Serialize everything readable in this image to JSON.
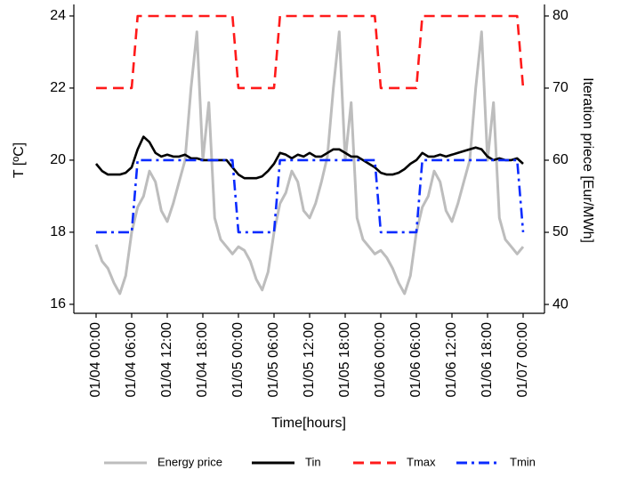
{
  "chart_data": {
    "type": "line",
    "x_label": "Time[hours]",
    "y_label": "T [ºC]",
    "y2_label": "Iteration priece [Eur/MWh]",
    "x": [
      0,
      1,
      2,
      3,
      4,
      5,
      6,
      7,
      8,
      9,
      10,
      11,
      12,
      13,
      14,
      15,
      16,
      17,
      18,
      19,
      20,
      21,
      22,
      23,
      24,
      25,
      26,
      27,
      28,
      29,
      30,
      31,
      32,
      33,
      34,
      35,
      36,
      37,
      38,
      39,
      40,
      41,
      42,
      43,
      44,
      45,
      46,
      47,
      48,
      49,
      50,
      51,
      52,
      53,
      54,
      55,
      56,
      57,
      58,
      59,
      60,
      61,
      62,
      63,
      64,
      65,
      66,
      67,
      68,
      69,
      70,
      71,
      72
    ],
    "xlim": [
      -3.75,
      75.6
    ],
    "xticks": [
      {
        "value": 0,
        "label": "01/04 00:00"
      },
      {
        "value": 6,
        "label": "01/04 06:00"
      },
      {
        "value": 12,
        "label": "01/04 12:00"
      },
      {
        "value": 18,
        "label": "01/04 18:00"
      },
      {
        "value": 24,
        "label": "01/05 00:00"
      },
      {
        "value": 30,
        "label": "01/05 06:00"
      },
      {
        "value": 36,
        "label": "01/05 12:00"
      },
      {
        "value": 42,
        "label": "01/05 18:00"
      },
      {
        "value": 48,
        "label": "01/06 00:00"
      },
      {
        "value": 54,
        "label": "01/06 06:00"
      },
      {
        "value": 60,
        "label": "01/06 12:00"
      },
      {
        "value": 66,
        "label": "01/06 18:00"
      },
      {
        "value": 72,
        "label": "01/07 00:00"
      }
    ],
    "ylim": [
      15.75,
      24.32
    ],
    "yticks": [
      16,
      18,
      20,
      22,
      24
    ],
    "y2lim": [
      38.77,
      81.6
    ],
    "y2ticks": [
      40,
      50,
      60,
      70,
      80
    ],
    "legend": "bottom",
    "series": [
      {
        "name": "Energy price",
        "color": "#bdbdbd",
        "linestyle": "solid",
        "axis": "y2",
        "values": [
          48.3,
          46,
          45,
          43,
          41.5,
          44,
          50,
          53.5,
          55,
          58.5,
          57,
          53,
          51.5,
          54,
          57,
          60,
          70,
          77.8,
          60,
          68,
          52,
          49,
          48,
          47,
          48,
          47.5,
          46,
          43.5,
          42,
          44.5,
          50,
          54,
          55.5,
          58.5,
          57,
          53,
          52,
          54,
          57,
          60.5,
          70,
          77.8,
          60,
          68,
          52,
          49,
          48,
          47,
          47.5,
          46.5,
          45,
          43,
          41.5,
          44,
          50,
          53.5,
          55,
          58.5,
          57,
          53,
          51.5,
          54,
          57,
          60,
          70,
          77.8,
          60,
          68,
          52,
          49,
          48,
          47,
          48
        ]
      },
      {
        "name": "Tin",
        "color": "#000000",
        "linestyle": "solid",
        "values": [
          19.9,
          19.7,
          19.6,
          19.6,
          19.6,
          19.65,
          19.8,
          20.3,
          20.65,
          20.5,
          20.2,
          20.1,
          20.15,
          20.1,
          20.1,
          20.15,
          20.05,
          20.05,
          20.0,
          20.0,
          20.0,
          20.0,
          20.0,
          19.8,
          19.6,
          19.5,
          19.5,
          19.5,
          19.55,
          19.7,
          19.9,
          20.2,
          20.15,
          20.05,
          20.15,
          20.1,
          20.2,
          20.1,
          20.1,
          20.2,
          20.3,
          20.3,
          20.2,
          20.1,
          20.1,
          20.0,
          19.9,
          19.8,
          19.65,
          19.6,
          19.6,
          19.65,
          19.75,
          19.9,
          20.0,
          20.2,
          20.1,
          20.1,
          20.15,
          20.1,
          20.15,
          20.2,
          20.25,
          20.3,
          20.35,
          20.3,
          20.1,
          20.0,
          20.05,
          20.0,
          20.0,
          20.05,
          19.9
        ]
      },
      {
        "name": "Tmax",
        "color": "#ff1a1a",
        "linestyle": "dashed",
        "values": [
          22,
          22,
          22,
          22,
          22,
          22,
          22,
          24,
          24,
          24,
          24,
          24,
          24,
          24,
          24,
          24,
          24,
          24,
          24,
          24,
          24,
          24,
          24,
          24,
          22,
          22,
          22,
          22,
          22,
          22,
          22,
          24,
          24,
          24,
          24,
          24,
          24,
          24,
          24,
          24,
          24,
          24,
          24,
          24,
          24,
          24,
          24,
          24,
          22,
          22,
          22,
          22,
          22,
          22,
          22,
          24,
          24,
          24,
          24,
          24,
          24,
          24,
          24,
          24,
          24,
          24,
          24,
          24,
          24,
          24,
          24,
          24,
          22
        ]
      },
      {
        "name": "Tmin",
        "color": "#0a2bff",
        "linestyle": "dashdot",
        "values": [
          18,
          18,
          18,
          18,
          18,
          18,
          18,
          20,
          20,
          20,
          20,
          20,
          20,
          20,
          20,
          20,
          20,
          20,
          20,
          20,
          20,
          20,
          20,
          20,
          18,
          18,
          18,
          18,
          18,
          18,
          18,
          20,
          20,
          20,
          20,
          20,
          20,
          20,
          20,
          20,
          20,
          20,
          20,
          20,
          20,
          20,
          20,
          20,
          18,
          18,
          18,
          18,
          18,
          18,
          18,
          20,
          20,
          20,
          20,
          20,
          20,
          20,
          20,
          20,
          20,
          20,
          20,
          20,
          20,
          20,
          20,
          20,
          18
        ]
      }
    ]
  }
}
